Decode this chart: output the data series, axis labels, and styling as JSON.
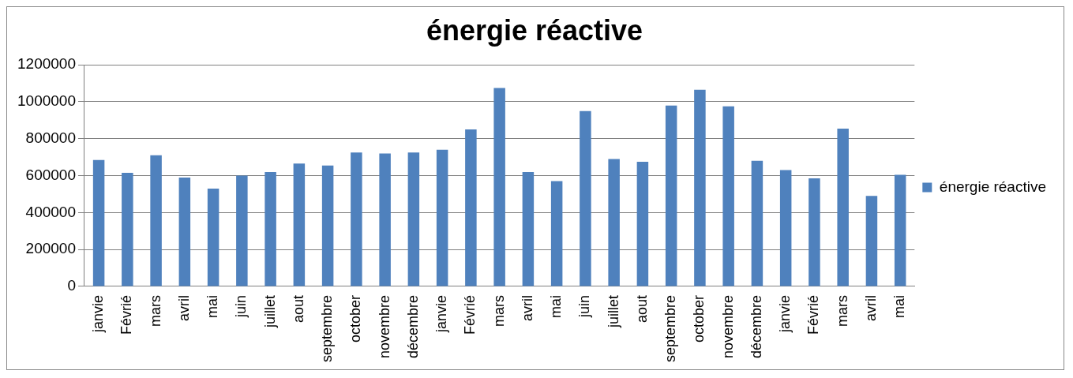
{
  "chart_data": {
    "type": "bar",
    "title": "énergie réactive",
    "categories": [
      "janvie",
      "Févrié",
      "mars",
      "avril",
      "mai",
      "juin",
      "juillet",
      "aout",
      "septembre",
      "october",
      "novembre",
      "décembre",
      "janvie",
      "Févrié",
      "mars",
      "avril",
      "mai",
      "juin",
      "juillet",
      "aout",
      "septembre",
      "october",
      "novembre",
      "décembre",
      "janvie",
      "Févrié",
      "mars",
      "avril",
      "mai"
    ],
    "series": [
      {
        "name": "énergie réactive",
        "color": "#4f81bd",
        "values": [
          685000,
          615000,
          710000,
          590000,
          530000,
          600000,
          620000,
          665000,
          655000,
          725000,
          720000,
          725000,
          740000,
          850000,
          1075000,
          620000,
          570000,
          950000,
          690000,
          675000,
          980000,
          1065000,
          975000,
          680000,
          630000,
          585000,
          855000,
          490000,
          605000
        ]
      }
    ],
    "ylim": [
      0,
      1200000
    ],
    "yticks": [
      0,
      200000,
      400000,
      600000,
      800000,
      1000000,
      1200000
    ],
    "grid": "y",
    "legend": "right"
  }
}
